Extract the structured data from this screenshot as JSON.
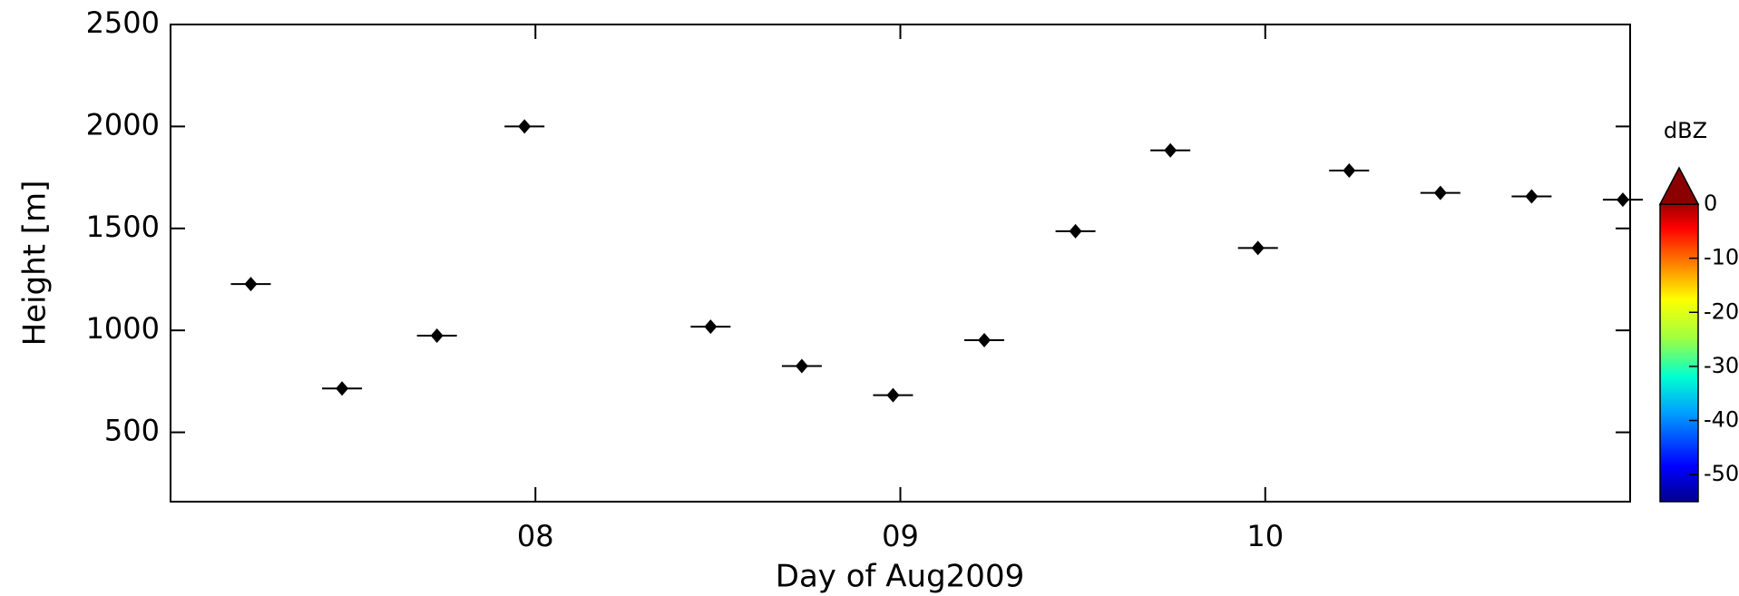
{
  "chart_data": {
    "type": "scatter",
    "xlabel": "Day of Aug2009",
    "ylabel": "Height [m]",
    "xlim": [
      7,
      11
    ],
    "xticks": [
      {
        "value": 8,
        "label": "08"
      },
      {
        "value": 9,
        "label": "09"
      },
      {
        "value": 10,
        "label": "10"
      }
    ],
    "ylim": [
      160,
      2500
    ],
    "yticks": [
      500,
      1000,
      1500,
      2000,
      2500
    ],
    "series": [
      {
        "color": "#000000",
        "x": [
          7.22,
          7.47,
          7.73,
          7.97,
          8.48,
          8.73,
          8.98,
          9.23,
          9.48,
          9.74,
          9.98,
          10.23,
          10.48,
          10.73,
          10.98
        ],
        "values": [
          1227,
          715,
          974,
          2000,
          1018,
          825,
          682,
          952,
          1486,
          1883,
          1404,
          1784,
          1674,
          1657,
          1641
        ]
      }
    ],
    "colorbar": {
      "label": "dBZ",
      "lim": [
        -55,
        0
      ],
      "ticks": [
        0,
        -10,
        -20,
        -30,
        -40,
        -50
      ]
    }
  }
}
